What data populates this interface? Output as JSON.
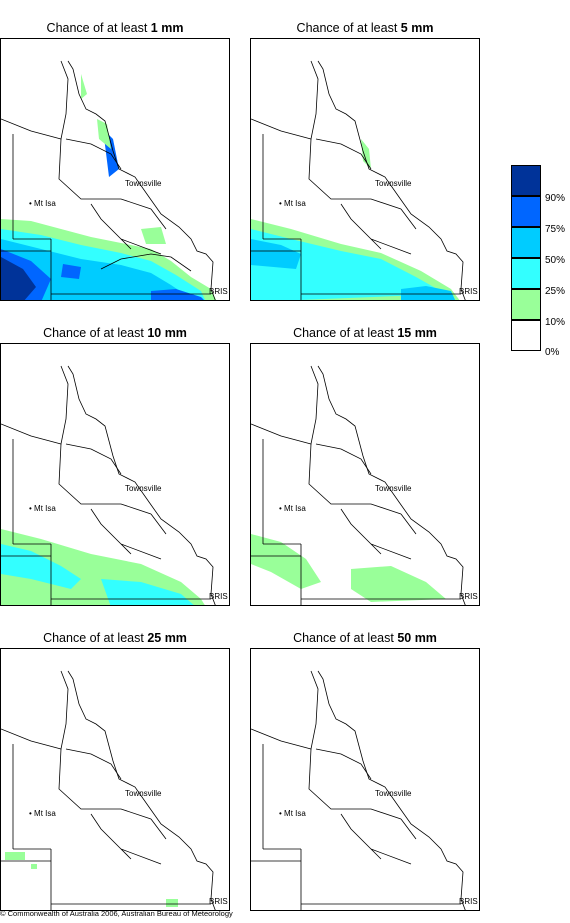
{
  "panels": [
    {
      "title_prefix": "Chance of at least ",
      "amount": "1 mm"
    },
    {
      "title_prefix": "Chance of at least ",
      "amount": "5 mm"
    },
    {
      "title_prefix": "Chance of at least ",
      "amount": "10 mm"
    },
    {
      "title_prefix": "Chance of at least ",
      "amount": "15 mm"
    },
    {
      "title_prefix": "Chance of at least ",
      "amount": "25 mm"
    },
    {
      "title_prefix": "Chance of at least ",
      "amount": "50 mm"
    }
  ],
  "places": {
    "townsville": "Townsville",
    "mt_isa": "Mt Isa",
    "bris": "BRIS"
  },
  "legend": {
    "colors": [
      "#ffffff",
      "#99ff99",
      "#33ffff",
      "#00ccff",
      "#0066ff",
      "#003399"
    ],
    "labels": [
      "0%",
      "10%",
      "25%",
      "50%",
      "75%",
      "90%"
    ]
  },
  "copyright": "© Commonwealth of Australia 2006, Australian Bureau of Meteorology"
}
